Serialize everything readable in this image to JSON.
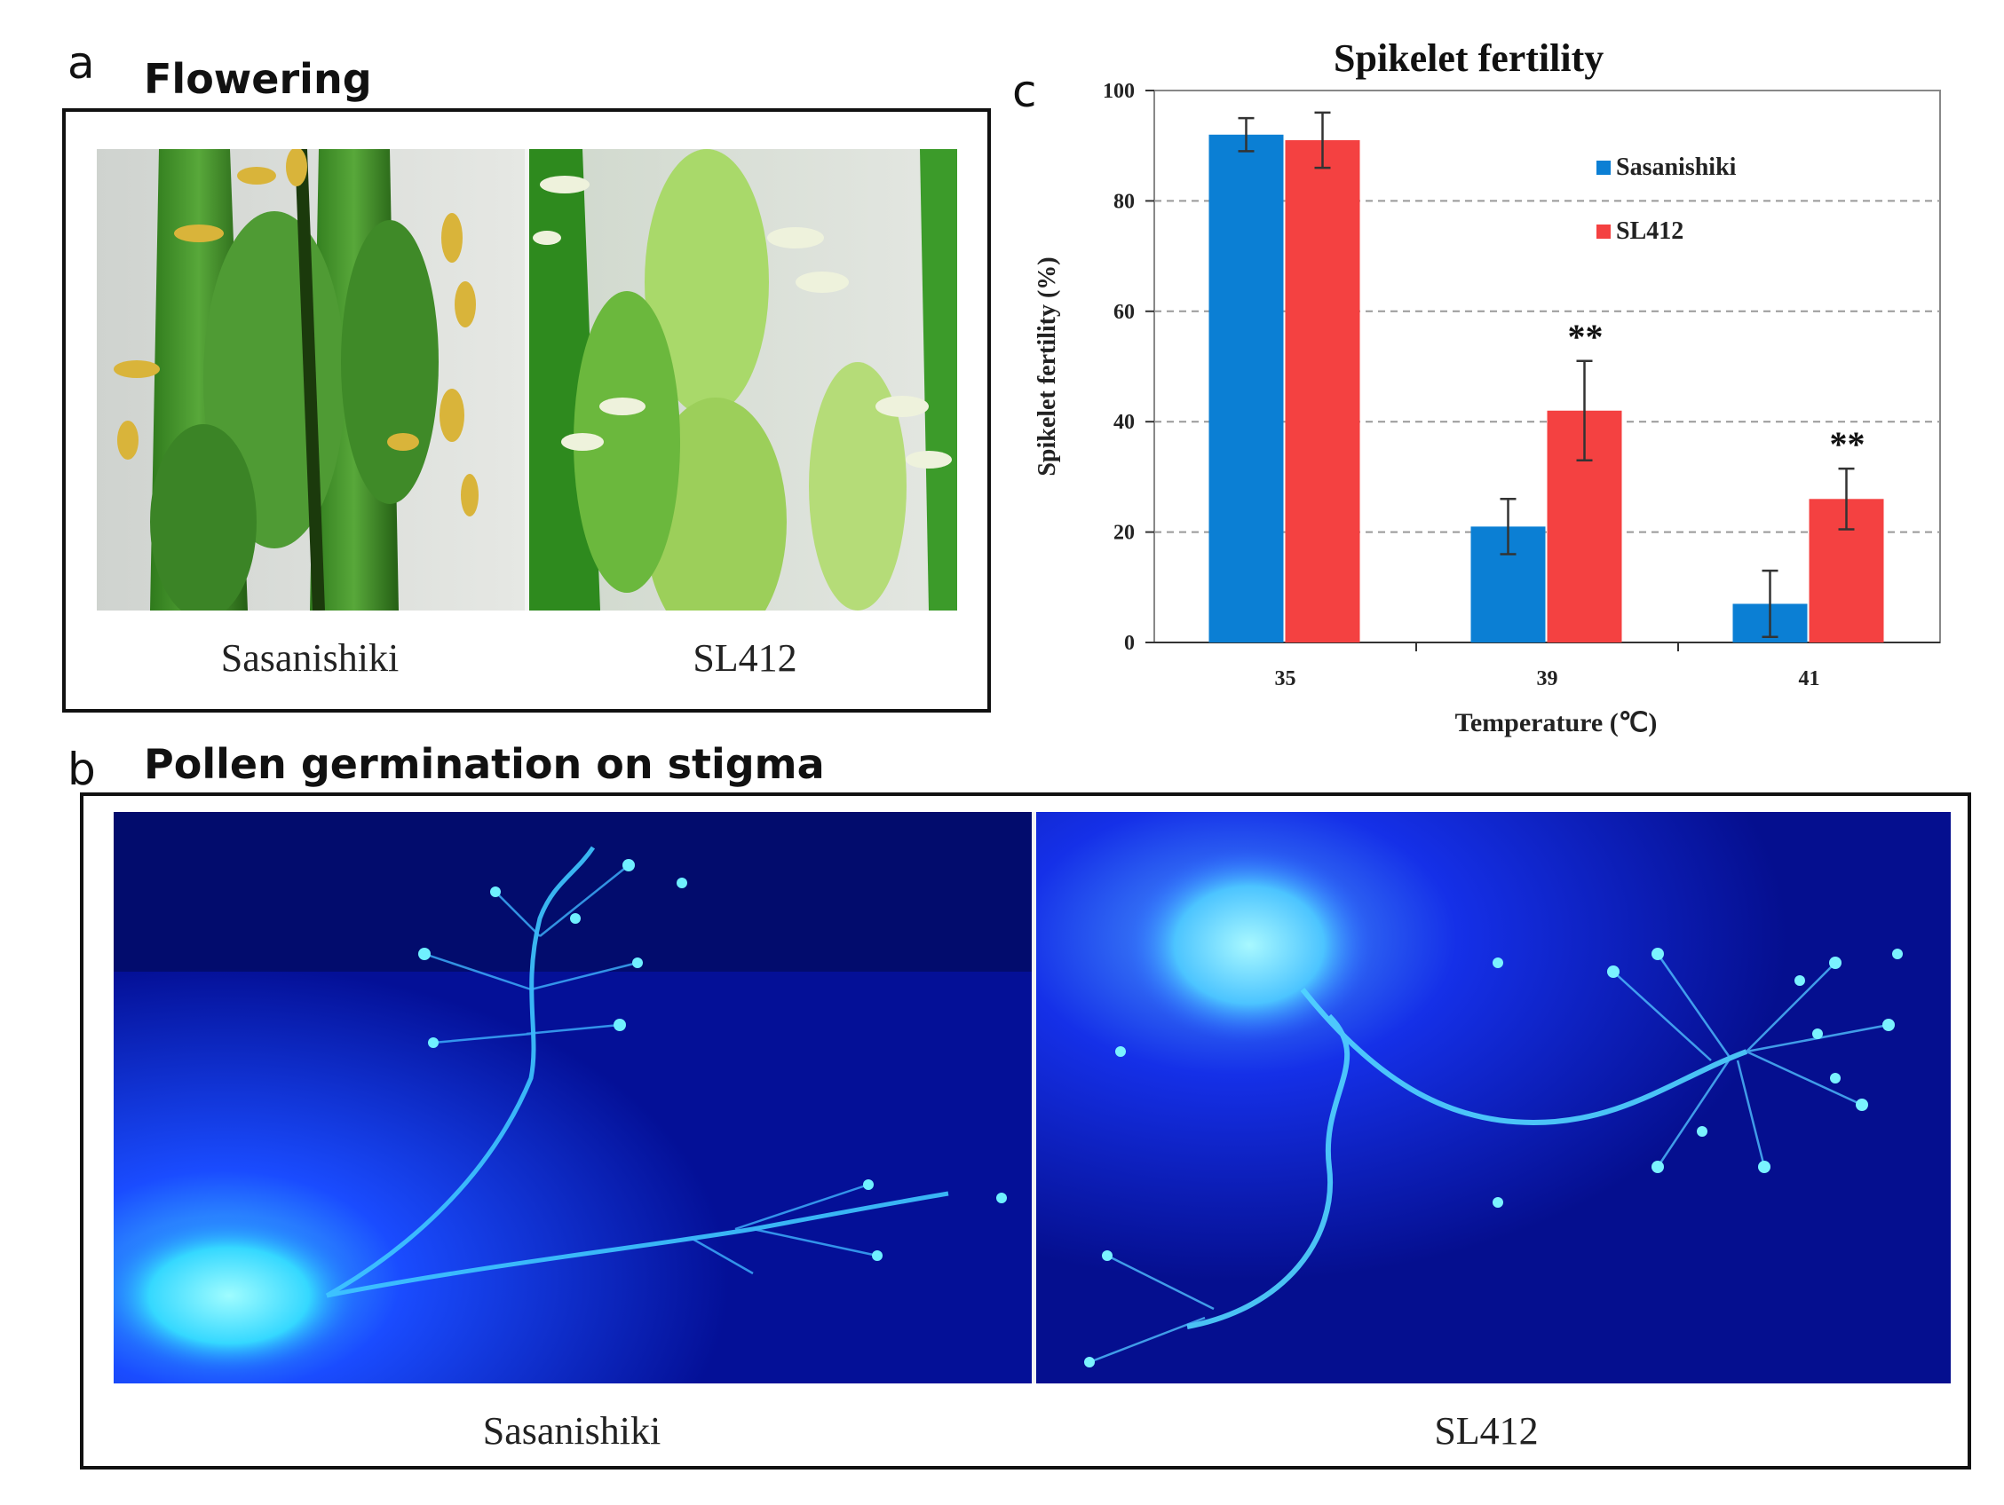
{
  "panel_a": {
    "letter": "a",
    "title": "Flowering",
    "captions": [
      "Sasanishiki",
      "SL412"
    ]
  },
  "panel_b": {
    "letter": "b",
    "title": "Pollen germination on stigma",
    "captions": [
      "Sasanishiki",
      "SL412"
    ]
  },
  "panel_c": {
    "letter": "c"
  },
  "colors": {
    "sasanishiki": "#0b7fd4",
    "sl412": "#f44141",
    "fluorescence_bg": "#05108f",
    "fluorescence_glow": "#40f0ff"
  },
  "chart_data": {
    "type": "bar",
    "title": "Spikelet fertility",
    "xlabel": "Temperature (℃)",
    "ylabel": "Spikelet fertility (%)",
    "ylim": [
      0,
      100
    ],
    "yticks": [
      "0",
      "20",
      "40",
      "60",
      "80",
      "100"
    ],
    "categories": [
      "35",
      "39",
      "41"
    ],
    "series": [
      {
        "name": "Sasanishiki",
        "values": [
          92,
          21,
          7
        ],
        "errors": [
          3,
          5,
          6
        ],
        "color": "#0b7fd4"
      },
      {
        "name": "SL412",
        "values": [
          91,
          42,
          26
        ],
        "errors": [
          5,
          9,
          5.5
        ],
        "color": "#f44141"
      }
    ],
    "annotations": [
      {
        "category": "39",
        "text": "**"
      },
      {
        "category": "41",
        "text": "**"
      }
    ],
    "grid": true,
    "legend": "top-right"
  }
}
